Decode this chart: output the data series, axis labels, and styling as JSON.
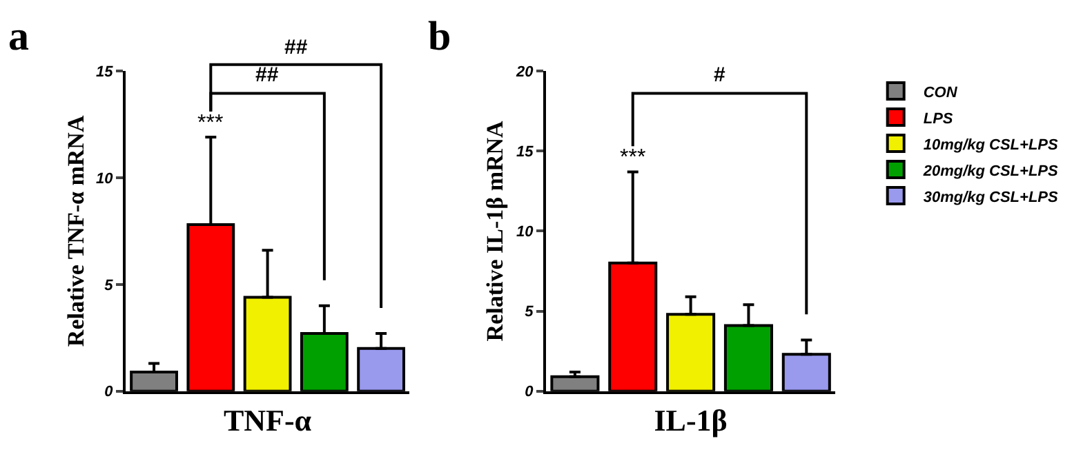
{
  "chart_data": [
    {
      "type": "bar",
      "title": "a",
      "xlabel": "TNF-α",
      "ylabel": "Relative TNF-α mRNA",
      "categories": [
        null,
        null,
        null,
        null,
        null
      ],
      "ylim": [
        0,
        15
      ],
      "yticks": [
        0,
        5,
        10,
        15
      ],
      "legend": false,
      "tick_labels": "y",
      "series": [
        {
          "color": "#808080",
          "values": [
            0.9,
            null,
            null,
            null,
            null
          ],
          "errors": [
            [
              0.9,
              1.3
            ],
            null,
            null,
            null,
            null
          ]
        },
        {
          "color": "#ff0000",
          "values": [
            null,
            7.8,
            null,
            null,
            null
          ],
          "errors": [
            null,
            [
              7.8,
              11.9
            ],
            null,
            null,
            null
          ]
        },
        {
          "color": "#f0f000",
          "values": [
            null,
            null,
            4.4,
            null,
            null
          ],
          "errors": [
            null,
            null,
            [
              4.4,
              6.6
            ],
            null,
            null
          ]
        },
        {
          "color": "#00a000",
          "values": [
            null,
            null,
            null,
            2.7,
            null
          ],
          "errors": [
            null,
            null,
            null,
            [
              2.7,
              4.0
            ],
            null
          ]
        },
        {
          "color": "#9999ee",
          "values": [
            null,
            null,
            null,
            null,
            2.0
          ],
          "errors": [
            null,
            null,
            null,
            null,
            [
              2.0,
              2.7
            ]
          ]
        }
      ],
      "annotations": [
        "***",
        "##",
        "##"
      ]
    },
    {
      "type": "bar",
      "title": "b",
      "xlabel": "IL-1β",
      "ylabel": "Relative IL-1β mRNA",
      "categories": [
        null,
        null,
        null,
        null,
        null
      ],
      "ylim": [
        0,
        20
      ],
      "yticks": [
        0,
        5,
        10,
        15,
        20
      ],
      "legend": "right",
      "tick_labels": "y",
      "series": [
        {
          "name": "CON",
          "color": "#808080",
          "values": [
            0.9,
            null,
            null,
            null,
            null
          ],
          "errors": [
            [
              0.9,
              1.2
            ],
            null,
            null,
            null,
            null
          ]
        },
        {
          "name": "LPS",
          "color": "#ff0000",
          "values": [
            null,
            8.0,
            null,
            null,
            null
          ],
          "errors": [
            null,
            [
              8.0,
              13.7
            ],
            null,
            null,
            null
          ]
        },
        {
          "name": "10mg/kg CSL+LPS",
          "color": "#f0f000",
          "values": [
            null,
            null,
            4.8,
            null,
            null
          ],
          "errors": [
            null,
            null,
            [
              4.8,
              5.9
            ],
            null,
            null
          ]
        },
        {
          "name": "20mg/kg CSL+LPS",
          "color": "#00a000",
          "values": [
            null,
            null,
            null,
            4.1,
            null
          ],
          "errors": [
            null,
            null,
            null,
            [
              4.1,
              5.4
            ],
            null
          ]
        },
        {
          "name": "30mg/kg CSL+LPS",
          "color": "#9999ee",
          "values": [
            null,
            null,
            null,
            null,
            2.3
          ],
          "errors": [
            null,
            null,
            null,
            null,
            [
              2.3,
              3.2
            ]
          ]
        }
      ],
      "annotations": [
        "***",
        "#"
      ]
    }
  ]
}
